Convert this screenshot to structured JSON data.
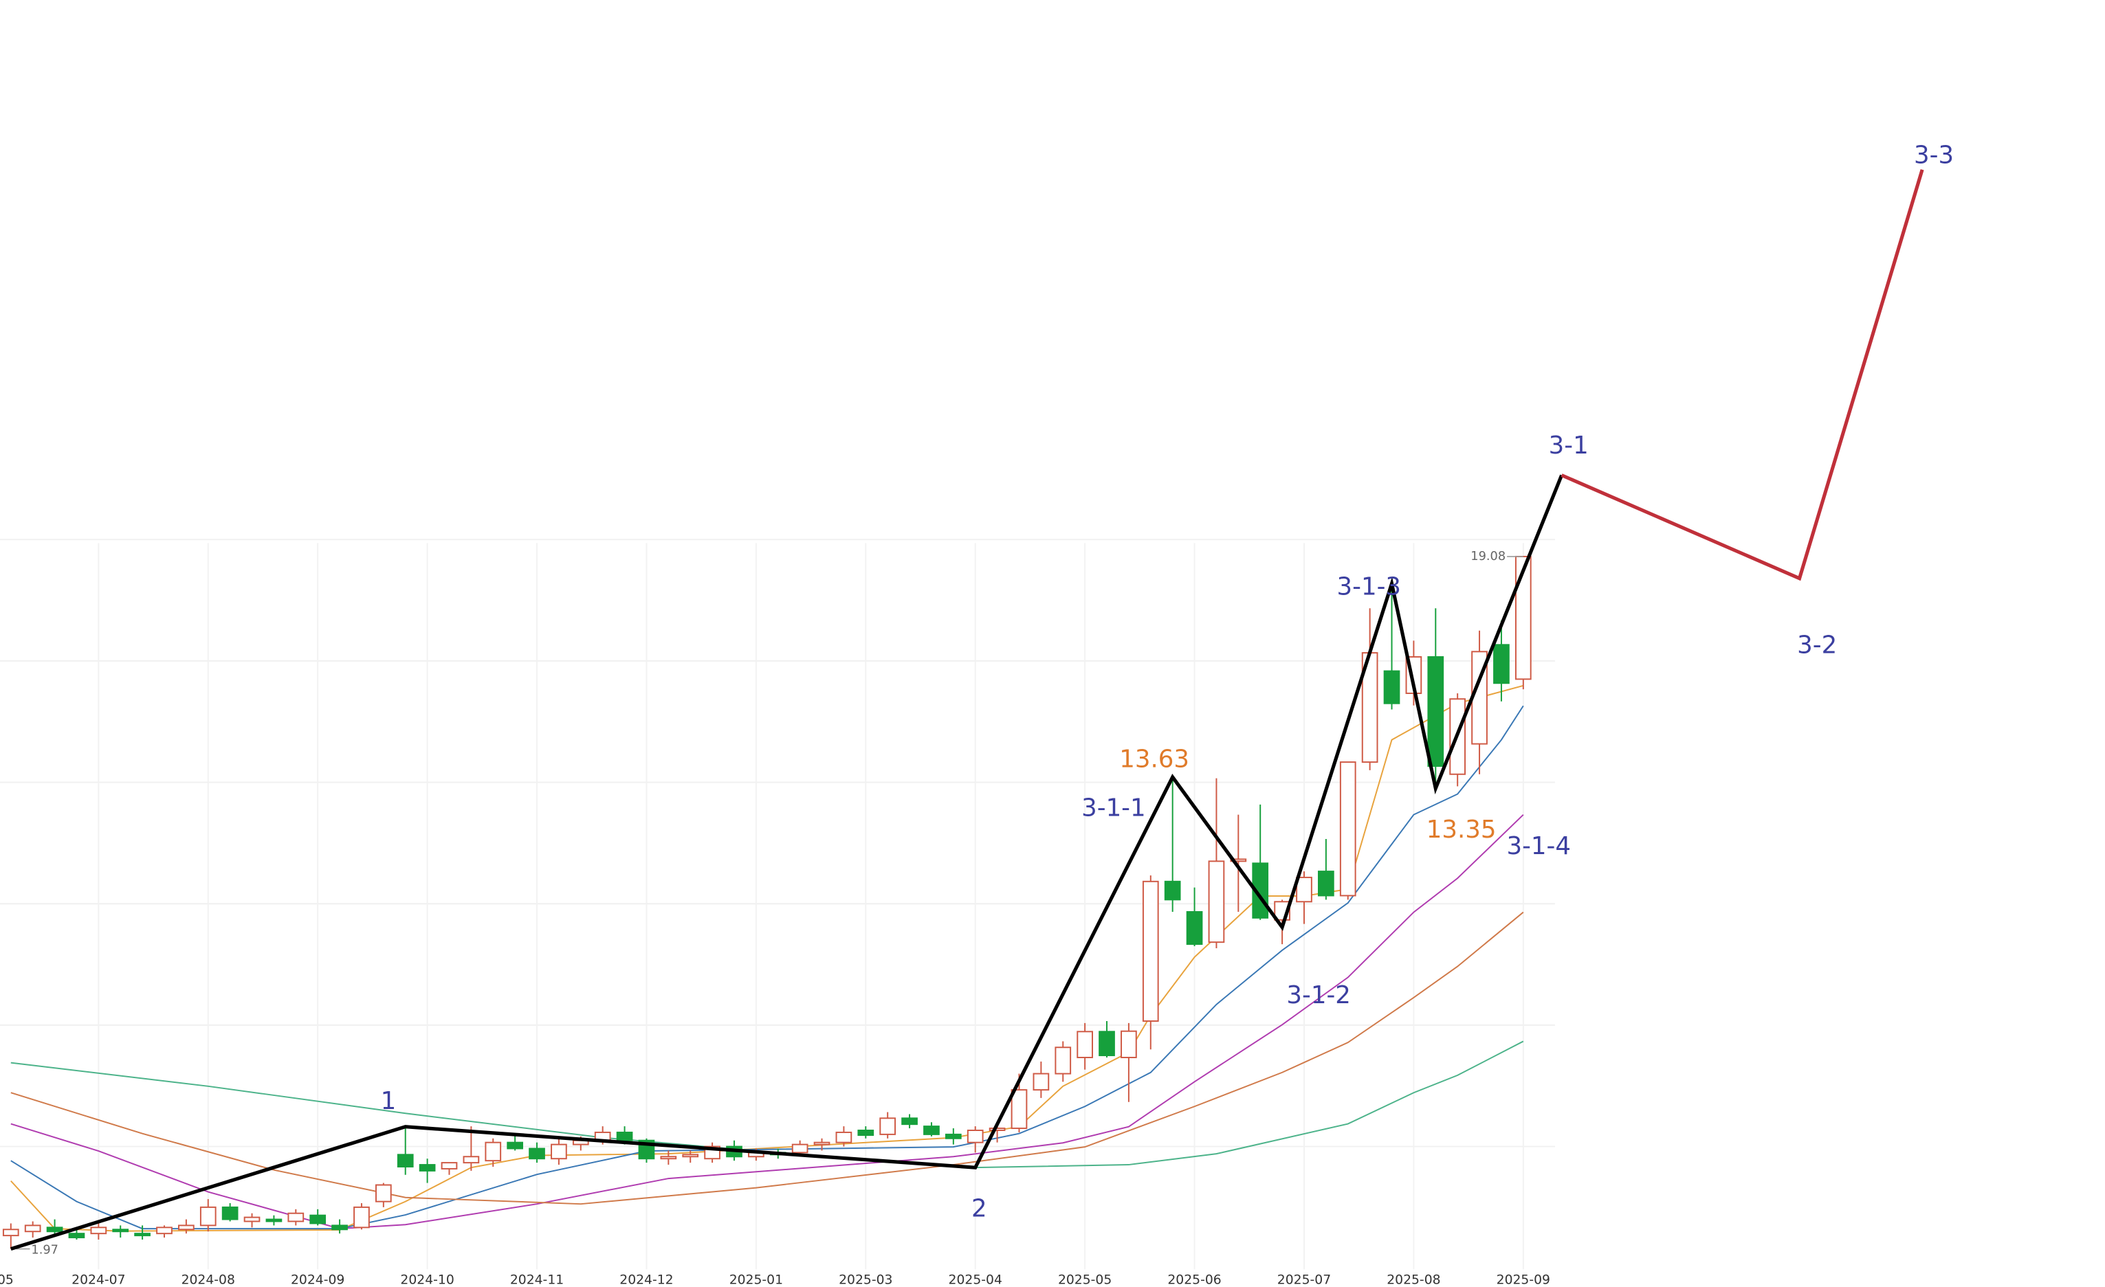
{
  "chart_data": {
    "type": "candlestick",
    "categories": [
      "05",
      null,
      null,
      null,
      "2024-07",
      null,
      null,
      null,
      null,
      "2024-08",
      null,
      null,
      null,
      null,
      "2024-09",
      null,
      null,
      null,
      null,
      "2024-10",
      null,
      null,
      null,
      null,
      "2024-11",
      null,
      null,
      null,
      null,
      "2024-12",
      null,
      null,
      null,
      null,
      "2025-01",
      null,
      null,
      null,
      null,
      "2025-03",
      null,
      null,
      null,
      null,
      "2025-04",
      null,
      null,
      null,
      null,
      "2025-05",
      null,
      null,
      null,
      null,
      "2025-06",
      null,
      null,
      null,
      null,
      "2025-07",
      null,
      null,
      null,
      null,
      "2025-08",
      null,
      null,
      null,
      null,
      "2025-09"
    ],
    "ylim": [
      1.5,
      29.5
    ],
    "ygrid": [
      4.5,
      7.5,
      10.5,
      13.5,
      16.5,
      19.5
    ],
    "grid": true,
    "up_color": "#cf5a45",
    "down_color": "#16a03c",
    "candles": {
      "open": [
        2.3,
        2.4,
        2.5,
        2.35,
        2.35,
        2.45,
        2.35,
        2.35,
        2.45,
        2.55,
        3.0,
        2.65,
        2.7,
        2.65,
        2.8,
        2.55,
        2.5,
        3.14,
        4.3,
        4.05,
        3.95,
        4.1,
        4.15,
        4.6,
        4.45,
        4.2,
        4.55,
        4.65,
        4.85,
        4.65,
        4.2,
        4.25,
        4.2,
        4.5,
        4.25,
        4.35,
        4.35,
        4.55,
        4.6,
        4.9,
        4.8,
        5.2,
        5.0,
        4.8,
        4.6,
        4.9,
        4.95,
        5.9,
        6.3,
        6.7,
        7.34,
        6.7,
        7.6,
        11.05,
        10.3,
        9.55,
        11.55,
        11.5,
        10.1,
        10.55,
        11.3,
        10.7,
        14.0,
        16.25,
        15.7,
        16.6,
        13.7,
        14.45,
        16.9,
        16.05
      ],
      "high": [
        2.6,
        2.65,
        2.7,
        2.5,
        2.6,
        2.55,
        2.55,
        2.55,
        2.7,
        3.2,
        3.1,
        2.85,
        2.8,
        2.95,
        2.95,
        2.7,
        3.1,
        3.6,
        4.99,
        4.2,
        4.1,
        5.0,
        4.7,
        4.8,
        4.6,
        4.7,
        4.75,
        5.0,
        5.0,
        4.7,
        4.4,
        4.4,
        4.6,
        4.65,
        4.45,
        4.45,
        4.65,
        4.7,
        5.0,
        5.0,
        5.35,
        5.3,
        5.1,
        4.95,
        5.0,
        5.05,
        6.3,
        6.6,
        7.1,
        7.55,
        7.6,
        7.55,
        11.2,
        13.63,
        10.9,
        13.6,
        12.7,
        12.95,
        10.6,
        11.3,
        12.1,
        14.0,
        17.8,
        18.41,
        17.0,
        17.8,
        15.7,
        17.25,
        17.5,
        19.08
      ],
      "low": [
        1.97,
        2.25,
        2.3,
        2.2,
        2.2,
        2.25,
        2.2,
        2.25,
        2.35,
        2.4,
        2.65,
        2.5,
        2.55,
        2.55,
        2.55,
        2.35,
        2.45,
        3.0,
        3.8,
        3.6,
        3.8,
        3.9,
        4.0,
        4.4,
        4.1,
        4.05,
        4.4,
        4.55,
        4.55,
        4.1,
        4.05,
        4.1,
        4.1,
        4.15,
        4.15,
        4.2,
        4.25,
        4.4,
        4.5,
        4.7,
        4.7,
        4.95,
        4.75,
        4.55,
        4.35,
        4.6,
        4.85,
        5.7,
        6.1,
        6.4,
        6.7,
        5.6,
        6.9,
        10.3,
        9.45,
        9.4,
        10.3,
        10.1,
        9.5,
        10.0,
        10.6,
        10.6,
        13.8,
        15.3,
        15.4,
        13.35,
        13.4,
        13.7,
        15.5,
        15.8
      ],
      "close": [
        2.45,
        2.55,
        2.4,
        2.25,
        2.5,
        2.4,
        2.3,
        2.5,
        2.55,
        3.0,
        2.7,
        2.75,
        2.65,
        2.85,
        2.6,
        2.45,
        3.0,
        3.55,
        4.0,
        3.9,
        4.1,
        4.25,
        4.6,
        4.45,
        4.2,
        4.55,
        4.65,
        4.85,
        4.65,
        4.2,
        4.25,
        4.3,
        4.5,
        4.25,
        4.35,
        4.3,
        4.55,
        4.6,
        4.85,
        4.78,
        5.2,
        5.05,
        4.8,
        4.7,
        4.9,
        4.95,
        5.9,
        6.3,
        6.95,
        7.34,
        6.75,
        7.35,
        11.05,
        10.6,
        9.5,
        11.55,
        11.6,
        10.15,
        10.55,
        11.15,
        10.7,
        14.0,
        16.7,
        15.45,
        16.6,
        13.9,
        15.56,
        16.73,
        15.95,
        19.08
      ]
    },
    "max_label": 19.08,
    "min_label": 1.97,
    "moving_averages": [
      {
        "color": "#e8a33d",
        "x": [
          0,
          2,
          5,
          15,
          18,
          21,
          24,
          30,
          43,
          46,
          48,
          51,
          52,
          54,
          57,
          59,
          61,
          63,
          66,
          69
        ],
        "values": [
          3.65,
          2.47,
          2.41,
          2.44,
          3.14,
          3.98,
          4.28,
          4.32,
          4.72,
          4.99,
          5.99,
          6.83,
          7.74,
          9.18,
          10.69,
          10.69,
          10.86,
          14.55,
          15.45,
          15.89
        ]
      },
      {
        "color": "#3a78b5",
        "x": [
          0,
          3,
          6,
          15,
          18,
          24,
          29,
          43,
          46,
          49,
          52,
          55,
          58,
          61,
          64,
          66,
          68,
          69
        ],
        "values": [
          4.15,
          3.14,
          2.47,
          2.47,
          2.81,
          3.81,
          4.39,
          4.49,
          4.82,
          5.49,
          6.33,
          8.01,
          9.35,
          10.52,
          12.7,
          13.21,
          14.55,
          15.39
        ]
      },
      {
        "color": "#b03cb0",
        "x": [
          0,
          4,
          9,
          15,
          18,
          24,
          30,
          43,
          48,
          51,
          54,
          58,
          61,
          64,
          66,
          69
        ],
        "values": [
          5.06,
          4.39,
          3.38,
          2.47,
          2.57,
          3.08,
          3.71,
          4.25,
          4.59,
          4.99,
          6.1,
          7.51,
          8.68,
          10.29,
          11.13,
          12.7
        ]
      },
      {
        "color": "#d07a4a",
        "x": [
          0,
          6,
          12,
          18,
          26,
          34,
          43,
          49,
          54,
          58,
          61,
          64,
          66,
          69
        ],
        "values": [
          5.83,
          4.82,
          3.92,
          3.24,
          3.08,
          3.48,
          4.05,
          4.49,
          5.49,
          6.33,
          7.07,
          8.18,
          8.95,
          10.29
        ]
      },
      {
        "color": "#4cb38a",
        "x": [
          0,
          9,
          18,
          27,
          37,
          44,
          51,
          55,
          61,
          64,
          66,
          69
        ],
        "values": [
          6.57,
          5.99,
          5.32,
          4.72,
          4.25,
          3.98,
          4.05,
          4.32,
          5.06,
          5.83,
          6.26,
          7.1
        ]
      }
    ],
    "wave_lines": [
      {
        "color": "#000000",
        "x": [
          0,
          18,
          44,
          53,
          58,
          63,
          65,
          70.75
        ],
        "values": [
          1.97,
          4.99,
          3.98,
          13.63,
          9.92,
          18.41,
          13.35,
          21.09
        ]
      },
      {
        "color": "#c0303a",
        "x": [
          70.75,
          81.6,
          87.2
        ],
        "values": [
          21.09,
          18.54,
          28.64
        ]
      }
    ],
    "annotations": [
      {
        "text": "1",
        "color": "#3b3fa0"
      },
      {
        "text": "2",
        "color": "#3b3fa0"
      },
      {
        "text": "3-1-1",
        "color": "#3b3fa0"
      },
      {
        "text": "13.63",
        "color": "#e07b2a"
      },
      {
        "text": "3-1-2",
        "color": "#3b3fa0"
      },
      {
        "text": "3-1-3",
        "color": "#3b3fa0"
      },
      {
        "text": "13.35",
        "color": "#e07b2a"
      },
      {
        "text": "3-1-4",
        "color": "#3b3fa0"
      },
      {
        "text": "3-1",
        "color": "#3b3fa0"
      },
      {
        "text": "3-2",
        "color": "#3b3fa0"
      },
      {
        "text": "3-3",
        "color": "#3b3fa0"
      }
    ]
  }
}
